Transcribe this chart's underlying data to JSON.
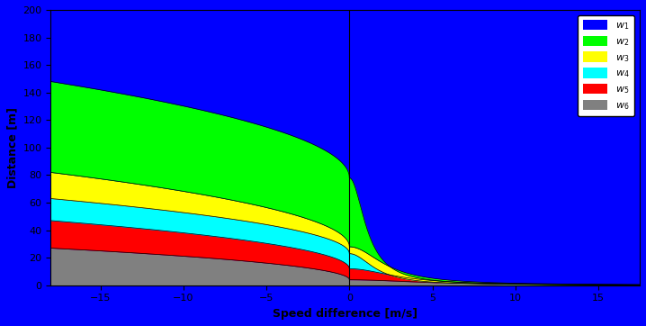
{
  "xlabel": "Speed difference [m/s]",
  "ylabel": "Distance [m]",
  "xlim": [
    -18,
    17.5
  ],
  "ylim": [
    0,
    200
  ],
  "xticks": [
    -15,
    -10,
    -5,
    0,
    5,
    10,
    15
  ],
  "yticks": [
    0,
    20,
    40,
    60,
    80,
    100,
    120,
    140,
    160,
    180,
    200
  ],
  "legend_labels": [
    "w_1",
    "w_2",
    "w_3",
    "w_4",
    "w_5",
    "w_6"
  ],
  "colors": {
    "blue": "#0000FF",
    "green": "#00FF00",
    "yellow": "#FFFF00",
    "cyan": "#00FFFF",
    "red": "#FF0000",
    "gray": "#808080"
  },
  "background": "#0000FF",
  "boundary_vals": {
    "gray_at_neg18": 27,
    "gray_at_0": 4,
    "red_at_neg18": 47,
    "red_at_0": 12,
    "cyan_at_neg18": 63,
    "cyan_at_0": 23,
    "yellow_at_neg18": 82,
    "yellow_at_0": 28,
    "green_at_neg18": 148,
    "green_at_0": 78
  },
  "right_decay": {
    "gray_v0": 4,
    "gray_k": 0.04,
    "red_v0": 12,
    "red_k": 0.1,
    "cyan_v0": 23,
    "cyan_k": 0.35,
    "yellow_v0": 28,
    "yellow_k": 0.18,
    "green_v0": 78,
    "green_k": 0.8
  }
}
